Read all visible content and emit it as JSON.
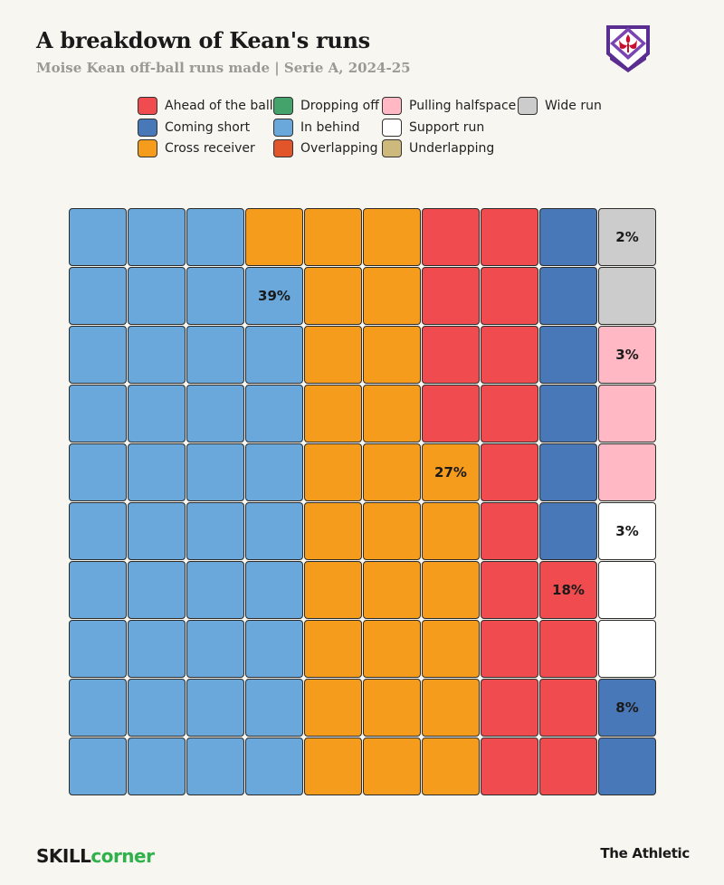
{
  "title": "A breakdown of Kean's runs",
  "subtitle": "Moise Kean off-ball runs made | Serie A, 2024-25",
  "logo": {
    "icon": "fiorentina-fleur-de-lis-icon",
    "colors": [
      "#5a2d91",
      "#ffffff",
      "#c8102e"
    ]
  },
  "footer": {
    "brand_left_a": "SKILL",
    "brand_left_b": "corner",
    "brand_right": "The Athletic"
  },
  "legend": [
    {
      "label": "Ahead of the ball",
      "color": "#f04c4f"
    },
    {
      "label": "Coming short",
      "color": "#4878b8"
    },
    {
      "label": "Cross receiver",
      "color": "#f59c1c"
    },
    {
      "label": "Dropping off",
      "color": "#44a36b"
    },
    {
      "label": "In behind",
      "color": "#6aa8db"
    },
    {
      "label": "Overlapping",
      "color": "#e2552b"
    },
    {
      "label": "Pulling halfspace",
      "color": "#ffb8c4"
    },
    {
      "label": "Support run",
      "color": "#ffffff"
    },
    {
      "label": "Underlapping",
      "color": "#cdb97c"
    },
    {
      "label": "Wide run",
      "color": "#cccccc"
    }
  ],
  "chart_data": {
    "type": "waffle",
    "grid": {
      "rows": 10,
      "cols": 10
    },
    "fill_order": "column-major, bottom-to-top",
    "series": [
      {
        "name": "In behind",
        "value": 39,
        "color": "#6aa8db",
        "label": "39%"
      },
      {
        "name": "Cross receiver",
        "value": 27,
        "color": "#f59c1c",
        "label": "27%"
      },
      {
        "name": "Ahead of the ball",
        "value": 18,
        "color": "#f04c4f",
        "label": "18%"
      },
      {
        "name": "Coming short",
        "value": 8,
        "color": "#4878b8",
        "label": "8%"
      },
      {
        "name": "Support run",
        "value": 3,
        "color": "#ffffff",
        "label": "3%"
      },
      {
        "name": "Pulling halfspace",
        "value": 3,
        "color": "#ffb8c4",
        "label": "3%"
      },
      {
        "name": "Wide run",
        "value": 2,
        "color": "#cccccc",
        "label": "2%"
      }
    ]
  }
}
